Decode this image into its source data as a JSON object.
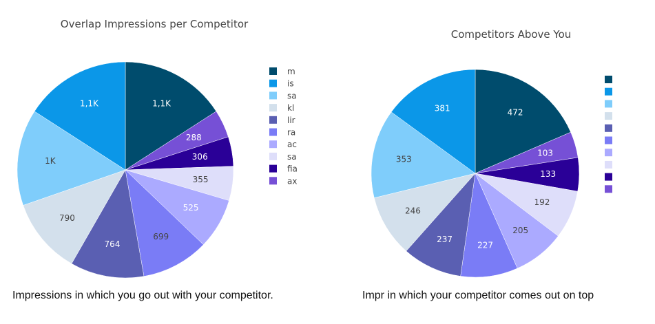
{
  "captions": {
    "left": "Impressions in which you go out with your competitor.",
    "right": "Impr in which your competitor comes out on top"
  },
  "chart_data": [
    {
      "type": "pie",
      "title": "Overlap Impressions per Competitor",
      "slices": [
        {
          "value": 1100,
          "label": "1,1K",
          "legend": "m",
          "color": "#004c6d",
          "text_color": "#ffffff"
        },
        {
          "value": 288,
          "label": "288",
          "legend": "",
          "color": "#7650d6",
          "text_color": "#ffffff"
        },
        {
          "value": 306,
          "label": "306",
          "legend": "",
          "color": "#2a0097",
          "text_color": "#ffffff"
        },
        {
          "value": 355,
          "label": "355",
          "legend": "",
          "color": "#dedefa",
          "text_color": "#444444"
        },
        {
          "value": 525,
          "label": "525",
          "legend": "",
          "color": "#abaaff",
          "text_color": "#ffffff"
        },
        {
          "value": 699,
          "label": "699",
          "legend": "",
          "color": "#7a7cf6",
          "text_color": "#444444"
        },
        {
          "value": 764,
          "label": "764",
          "legend": "",
          "color": "#5a5fb2",
          "text_color": "#ffffff"
        },
        {
          "value": 790,
          "label": "790",
          "legend": "",
          "color": "#d3e0ec",
          "text_color": "#444444"
        },
        {
          "value": 1000,
          "label": "1K",
          "legend": "",
          "color": "#7fcdfb",
          "text_color": "#444444"
        },
        {
          "value": 1100,
          "label": "1,1K",
          "legend": "",
          "color": "#0b97e8",
          "text_color": "#ffffff"
        }
      ],
      "legend": [
        {
          "label": "m",
          "color": "#004c6d"
        },
        {
          "label": "is",
          "color": "#0b97e8"
        },
        {
          "label": "sa",
          "color": "#7fcdfb"
        },
        {
          "label": "kl",
          "color": "#d3e0ec"
        },
        {
          "label": "lir",
          "color": "#5a5fb2"
        },
        {
          "label": "ra",
          "color": "#7a7cf6"
        },
        {
          "label": "ac",
          "color": "#abaaff"
        },
        {
          "label": "sa",
          "color": "#dedefa"
        },
        {
          "label": "fia",
          "color": "#2a0097"
        },
        {
          "label": "ax",
          "color": "#7650d6"
        }
      ],
      "legend_placement": "right"
    },
    {
      "type": "pie",
      "title": "Competitors Above You",
      "slices": [
        {
          "value": 472,
          "label": "472",
          "color": "#004c6d",
          "text_color": "#ffffff"
        },
        {
          "value": 103,
          "label": "103",
          "color": "#7650d6",
          "text_color": "#ffffff"
        },
        {
          "value": 133,
          "label": "133",
          "color": "#2a0097",
          "text_color": "#ffffff"
        },
        {
          "value": 192,
          "label": "192",
          "color": "#dedefa",
          "text_color": "#444444"
        },
        {
          "value": 205,
          "label": "205",
          "color": "#abaaff",
          "text_color": "#444444"
        },
        {
          "value": 227,
          "label": "227",
          "color": "#7a7cf6",
          "text_color": "#ffffff"
        },
        {
          "value": 237,
          "label": "237",
          "color": "#5a5fb2",
          "text_color": "#ffffff"
        },
        {
          "value": 246,
          "label": "246",
          "color": "#d3e0ec",
          "text_color": "#444444"
        },
        {
          "value": 353,
          "label": "353",
          "color": "#7fcdfb",
          "text_color": "#444444"
        },
        {
          "value": 381,
          "label": "381",
          "color": "#0b97e8",
          "text_color": "#ffffff"
        }
      ],
      "legend": [
        {
          "label": "",
          "color": "#004c6d"
        },
        {
          "label": "",
          "color": "#0b97e8"
        },
        {
          "label": "",
          "color": "#7fcdfb"
        },
        {
          "label": "",
          "color": "#d3e0ec"
        },
        {
          "label": "",
          "color": "#5a5fb2"
        },
        {
          "label": "",
          "color": "#7a7cf6"
        },
        {
          "label": "",
          "color": "#abaaff"
        },
        {
          "label": "",
          "color": "#dedefa"
        },
        {
          "label": "",
          "color": "#2a0097"
        },
        {
          "label": "",
          "color": "#7650d6"
        }
      ],
      "legend_placement": "right"
    }
  ]
}
